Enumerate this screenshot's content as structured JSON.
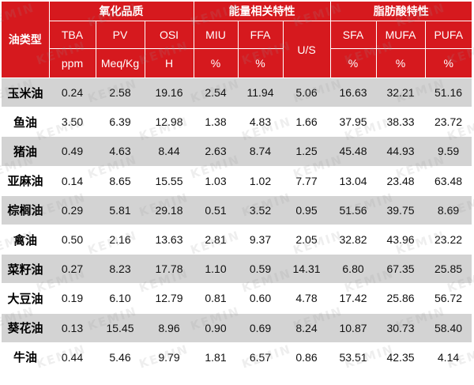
{
  "header": {
    "oil_type_label": "油类型",
    "groups": [
      {
        "label": "氧化品质"
      },
      {
        "label": "能量相关特性"
      },
      {
        "label": "脂肪酸特性"
      }
    ],
    "metrics": [
      {
        "name": "TBA",
        "unit": "ppm"
      },
      {
        "name": "PV",
        "unit": "Meq/Kg"
      },
      {
        "name": "OSI",
        "unit": "H"
      },
      {
        "name": "MIU",
        "unit": "%"
      },
      {
        "name": "FFA",
        "unit": "%"
      },
      {
        "name": "U/S",
        "unit": ""
      },
      {
        "name": "SFA",
        "unit": "%"
      },
      {
        "name": "MUFA",
        "unit": "%"
      },
      {
        "name": "PUFA",
        "unit": "%"
      }
    ]
  },
  "rows": [
    {
      "oil": "玉米油",
      "values": [
        "0.24",
        "2.58",
        "19.16",
        "2.54",
        "11.94",
        "5.06",
        "16.63",
        "32.21",
        "51.16"
      ]
    },
    {
      "oil": "鱼油",
      "values": [
        "3.50",
        "6.39",
        "12.98",
        "1.38",
        "4.83",
        "1.66",
        "37.95",
        "38.33",
        "23.72"
      ]
    },
    {
      "oil": "猪油",
      "values": [
        "0.49",
        "4.63",
        "8.44",
        "2.63",
        "8.74",
        "1.25",
        "45.48",
        "44.93",
        "9.59"
      ]
    },
    {
      "oil": "亚麻油",
      "values": [
        "0.14",
        "8.65",
        "15.55",
        "1.03",
        "1.02",
        "7.77",
        "13.04",
        "23.48",
        "63.48"
      ]
    },
    {
      "oil": "棕榈油",
      "values": [
        "0.29",
        "5.81",
        "29.18",
        "0.51",
        "3.52",
        "0.95",
        "51.56",
        "39.75",
        "8.69"
      ]
    },
    {
      "oil": "禽油",
      "values": [
        "0.50",
        "2.16",
        "13.63",
        "2.81",
        "9.37",
        "2.05",
        "32.82",
        "43.96",
        "23.22"
      ]
    },
    {
      "oil": "菜籽油",
      "values": [
        "0.27",
        "8.23",
        "17.78",
        "1.10",
        "0.59",
        "14.31",
        "6.80",
        "67.35",
        "25.85"
      ]
    },
    {
      "oil": "大豆油",
      "values": [
        "0.19",
        "6.10",
        "12.79",
        "0.81",
        "0.60",
        "4.78",
        "17.42",
        "25.86",
        "56.72"
      ]
    },
    {
      "oil": "葵花油",
      "values": [
        "0.13",
        "15.45",
        "8.96",
        "0.90",
        "0.69",
        "8.24",
        "10.87",
        "30.73",
        "58.40"
      ]
    },
    {
      "oil": "牛油",
      "values": [
        "0.44",
        "5.46",
        "9.79",
        "1.81",
        "6.57",
        "0.86",
        "53.51",
        "42.35",
        "4.14"
      ]
    }
  ],
  "colors": {
    "header_bg": "#d6191e",
    "header_text": "#ffffff",
    "stripe": "#d3d3d3",
    "plain": "#ffffff"
  },
  "watermark": {
    "text": "KEMIN"
  }
}
